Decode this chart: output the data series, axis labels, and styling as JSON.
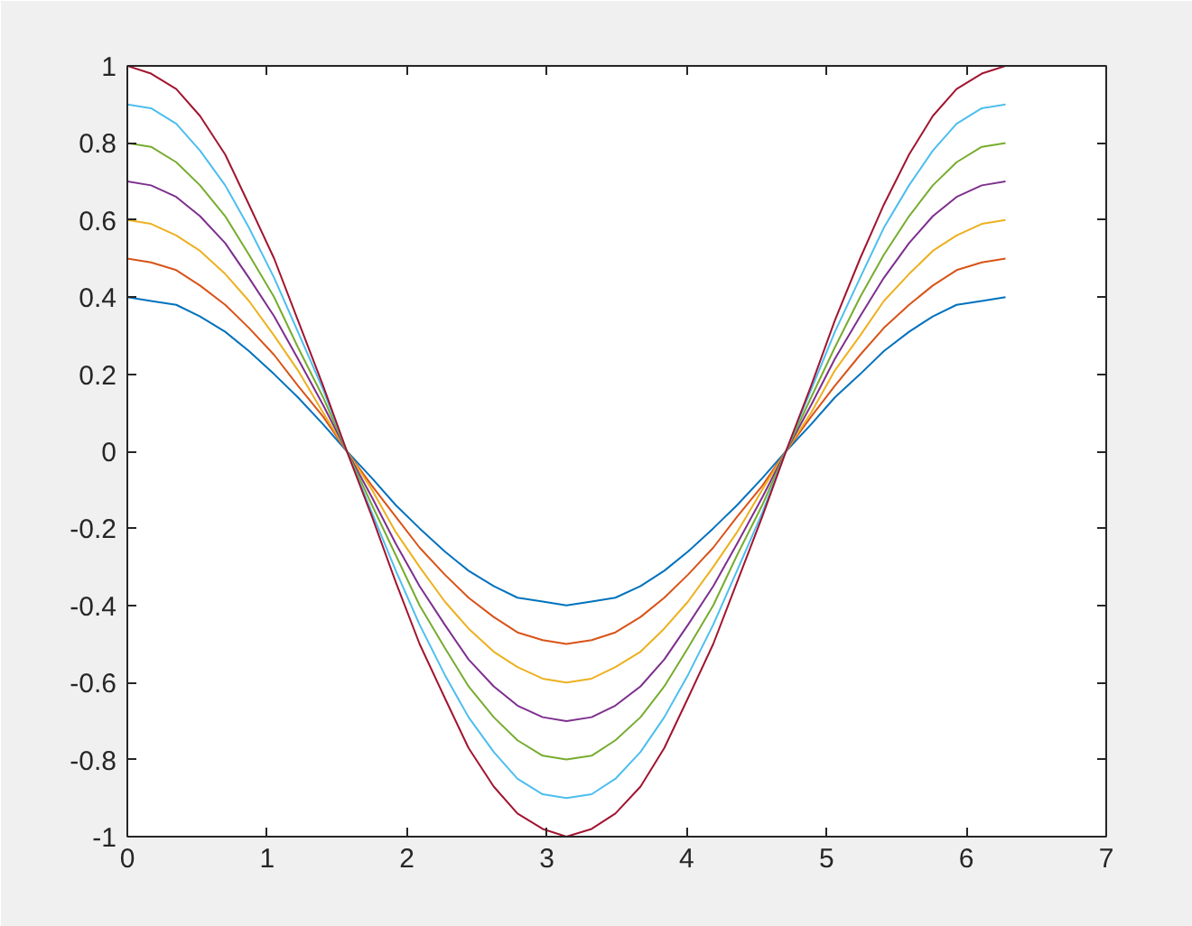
{
  "chart_data": {
    "type": "line",
    "x": [
      0,
      0.17,
      0.35,
      0.52,
      0.7,
      0.87,
      1.05,
      1.22,
      1.4,
      1.57,
      1.75,
      1.92,
      2.09,
      2.27,
      2.44,
      2.62,
      2.79,
      2.97,
      3.14,
      3.32,
      3.49,
      3.67,
      3.84,
      4.01,
      4.19,
      4.36,
      4.54,
      4.71,
      4.89,
      5.06,
      5.24,
      5.41,
      5.59,
      5.76,
      5.93,
      6.11,
      6.28
    ],
    "series": [
      {
        "color": "#0072bd",
        "values": [
          0.4,
          0.39,
          0.38,
          0.35,
          0.31,
          0.26,
          0.2,
          0.14,
          0.07,
          0,
          -0.07,
          -0.14,
          -0.2,
          -0.26,
          -0.31,
          -0.35,
          -0.38,
          -0.39,
          -0.4,
          -0.39,
          -0.38,
          -0.35,
          -0.31,
          -0.26,
          -0.2,
          -0.14,
          -0.07,
          0,
          0.07,
          0.14,
          0.2,
          0.26,
          0.31,
          0.35,
          0.38,
          0.39,
          0.4
        ]
      },
      {
        "color": "#d95319",
        "values": [
          0.5,
          0.49,
          0.47,
          0.43,
          0.38,
          0.32,
          0.25,
          0.17,
          0.09,
          0,
          -0.09,
          -0.17,
          -0.25,
          -0.32,
          -0.38,
          -0.43,
          -0.47,
          -0.49,
          -0.5,
          -0.49,
          -0.47,
          -0.43,
          -0.38,
          -0.32,
          -0.25,
          -0.17,
          -0.09,
          0,
          0.09,
          0.17,
          0.25,
          0.32,
          0.38,
          0.43,
          0.47,
          0.49,
          0.5
        ]
      },
      {
        "color": "#edb120",
        "values": [
          0.6,
          0.59,
          0.56,
          0.52,
          0.46,
          0.39,
          0.3,
          0.21,
          0.1,
          0,
          -0.1,
          -0.21,
          -0.3,
          -0.39,
          -0.46,
          -0.52,
          -0.56,
          -0.59,
          -0.6,
          -0.59,
          -0.56,
          -0.52,
          -0.46,
          -0.39,
          -0.3,
          -0.21,
          -0.1,
          0,
          0.1,
          0.21,
          0.3,
          0.39,
          0.46,
          0.52,
          0.56,
          0.59,
          0.6
        ]
      },
      {
        "color": "#7e2f8e",
        "values": [
          0.7,
          0.69,
          0.66,
          0.61,
          0.54,
          0.45,
          0.35,
          0.24,
          0.12,
          0,
          -0.12,
          -0.24,
          -0.35,
          -0.45,
          -0.54,
          -0.61,
          -0.66,
          -0.69,
          -0.7,
          -0.69,
          -0.66,
          -0.61,
          -0.54,
          -0.45,
          -0.35,
          -0.24,
          -0.12,
          0,
          0.12,
          0.24,
          0.35,
          0.45,
          0.54,
          0.61,
          0.66,
          0.69,
          0.7
        ]
      },
      {
        "color": "#77ac30",
        "values": [
          0.8,
          0.79,
          0.75,
          0.69,
          0.61,
          0.51,
          0.4,
          0.27,
          0.14,
          0,
          -0.14,
          -0.27,
          -0.4,
          -0.51,
          -0.61,
          -0.69,
          -0.75,
          -0.79,
          -0.8,
          -0.79,
          -0.75,
          -0.69,
          -0.61,
          -0.51,
          -0.4,
          -0.27,
          -0.14,
          0,
          0.14,
          0.27,
          0.4,
          0.51,
          0.61,
          0.69,
          0.75,
          0.79,
          0.8
        ]
      },
      {
        "color": "#4dbeee",
        "values": [
          0.9,
          0.89,
          0.85,
          0.78,
          0.69,
          0.58,
          0.45,
          0.31,
          0.16,
          0,
          -0.16,
          -0.31,
          -0.45,
          -0.58,
          -0.69,
          -0.78,
          -0.85,
          -0.89,
          -0.9,
          -0.89,
          -0.85,
          -0.78,
          -0.69,
          -0.58,
          -0.45,
          -0.31,
          -0.16,
          0,
          0.16,
          0.31,
          0.45,
          0.58,
          0.69,
          0.78,
          0.85,
          0.89,
          0.9
        ]
      },
      {
        "color": "#a2142f",
        "values": [
          1,
          0.98,
          0.94,
          0.87,
          0.77,
          0.64,
          0.5,
          0.34,
          0.17,
          0,
          -0.17,
          -0.34,
          -0.5,
          -0.64,
          -0.77,
          -0.87,
          -0.94,
          -0.98,
          -1,
          -0.98,
          -0.94,
          -0.87,
          -0.77,
          -0.64,
          -0.5,
          -0.34,
          -0.17,
          0,
          0.17,
          0.34,
          0.5,
          0.64,
          0.77,
          0.87,
          0.94,
          0.98,
          1
        ]
      }
    ],
    "xlim": [
      0,
      7
    ],
    "ylim": [
      -1,
      1
    ],
    "xticks": [
      0,
      1,
      2,
      3,
      4,
      5,
      6,
      7
    ],
    "yticks": [
      -1,
      -0.8,
      -0.6,
      -0.4,
      -0.2,
      0,
      0.2,
      0.4,
      0.6,
      0.8,
      1
    ],
    "grid": false,
    "line_style": "solid"
  }
}
